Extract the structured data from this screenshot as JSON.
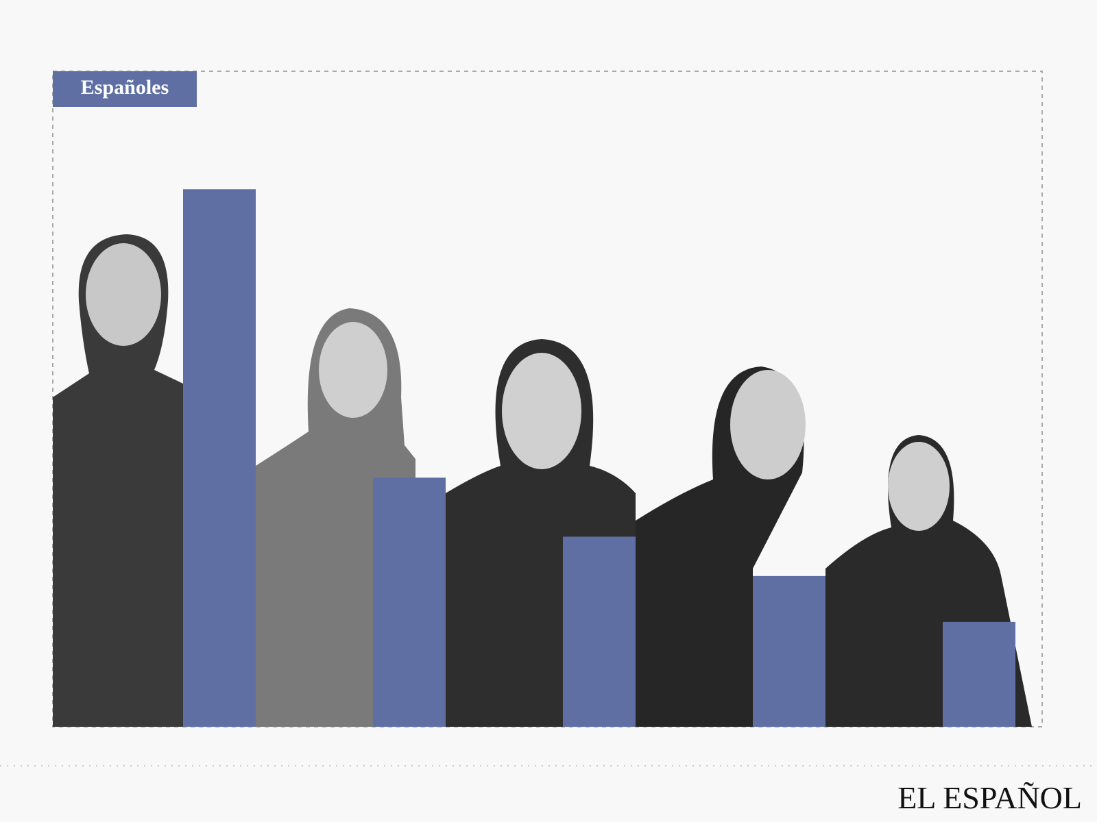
{
  "chart_data": {
    "type": "bar",
    "label": "Españoles",
    "logo": "EL ESPAÑOL",
    "values": [
      82,
      38,
      29,
      23,
      16
    ],
    "color": "#5f6fa3",
    "ylim": [
      0,
      100
    ]
  }
}
